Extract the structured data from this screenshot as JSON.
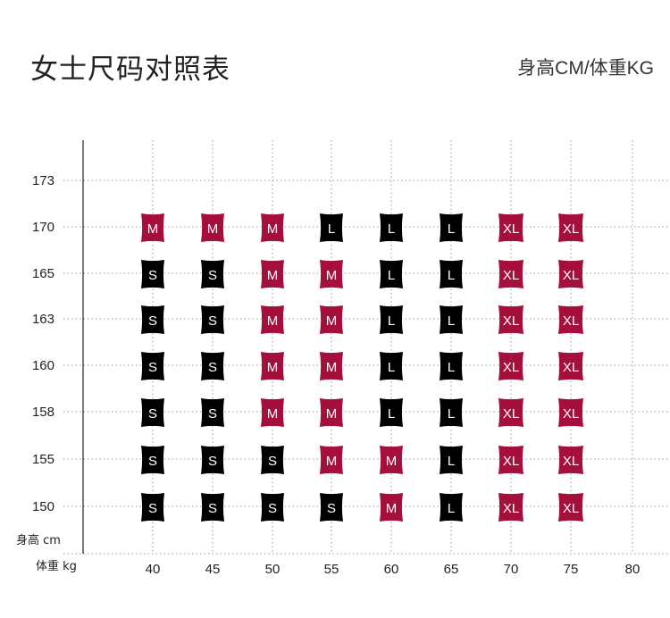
{
  "header": {
    "title": "女士尺码对照表",
    "subtitle": "身高CM/体重KG"
  },
  "chart_data": {
    "type": "table",
    "title": "女士尺码对照表",
    "subtitle": "身高CM/体重KG",
    "ylabel": "身高 cm",
    "xlabel": "体重 kg",
    "x_ticks": [
      "40",
      "45",
      "50",
      "55",
      "60",
      "65",
      "70",
      "75",
      "80"
    ],
    "y_ticks": [
      "173",
      "170",
      "165",
      "163",
      "160",
      "158",
      "155",
      "150"
    ],
    "grid": true,
    "colors": {
      "red": "#a50f3c",
      "black": "#000000"
    },
    "rows": [
      {
        "height": "170",
        "sizes": [
          "M",
          "M",
          "M",
          "L",
          "L",
          "L",
          "XL",
          "XL"
        ]
      },
      {
        "height": "165",
        "sizes": [
          "S",
          "S",
          "M",
          "M",
          "L",
          "L",
          "XL",
          "XL"
        ]
      },
      {
        "height": "163",
        "sizes": [
          "S",
          "S",
          "M",
          "M",
          "L",
          "L",
          "XL",
          "XL"
        ]
      },
      {
        "height": "160",
        "sizes": [
          "S",
          "S",
          "M",
          "M",
          "L",
          "L",
          "XL",
          "XL"
        ]
      },
      {
        "height": "158",
        "sizes": [
          "S",
          "S",
          "M",
          "M",
          "L",
          "L",
          "XL",
          "XL"
        ]
      },
      {
        "height": "155",
        "sizes": [
          "S",
          "S",
          "S",
          "M",
          "M",
          "L",
          "XL",
          "XL"
        ]
      },
      {
        "height": "150",
        "sizes": [
          "S",
          "S",
          "S",
          "S",
          "M",
          "L",
          "XL",
          "XL"
        ]
      }
    ]
  }
}
